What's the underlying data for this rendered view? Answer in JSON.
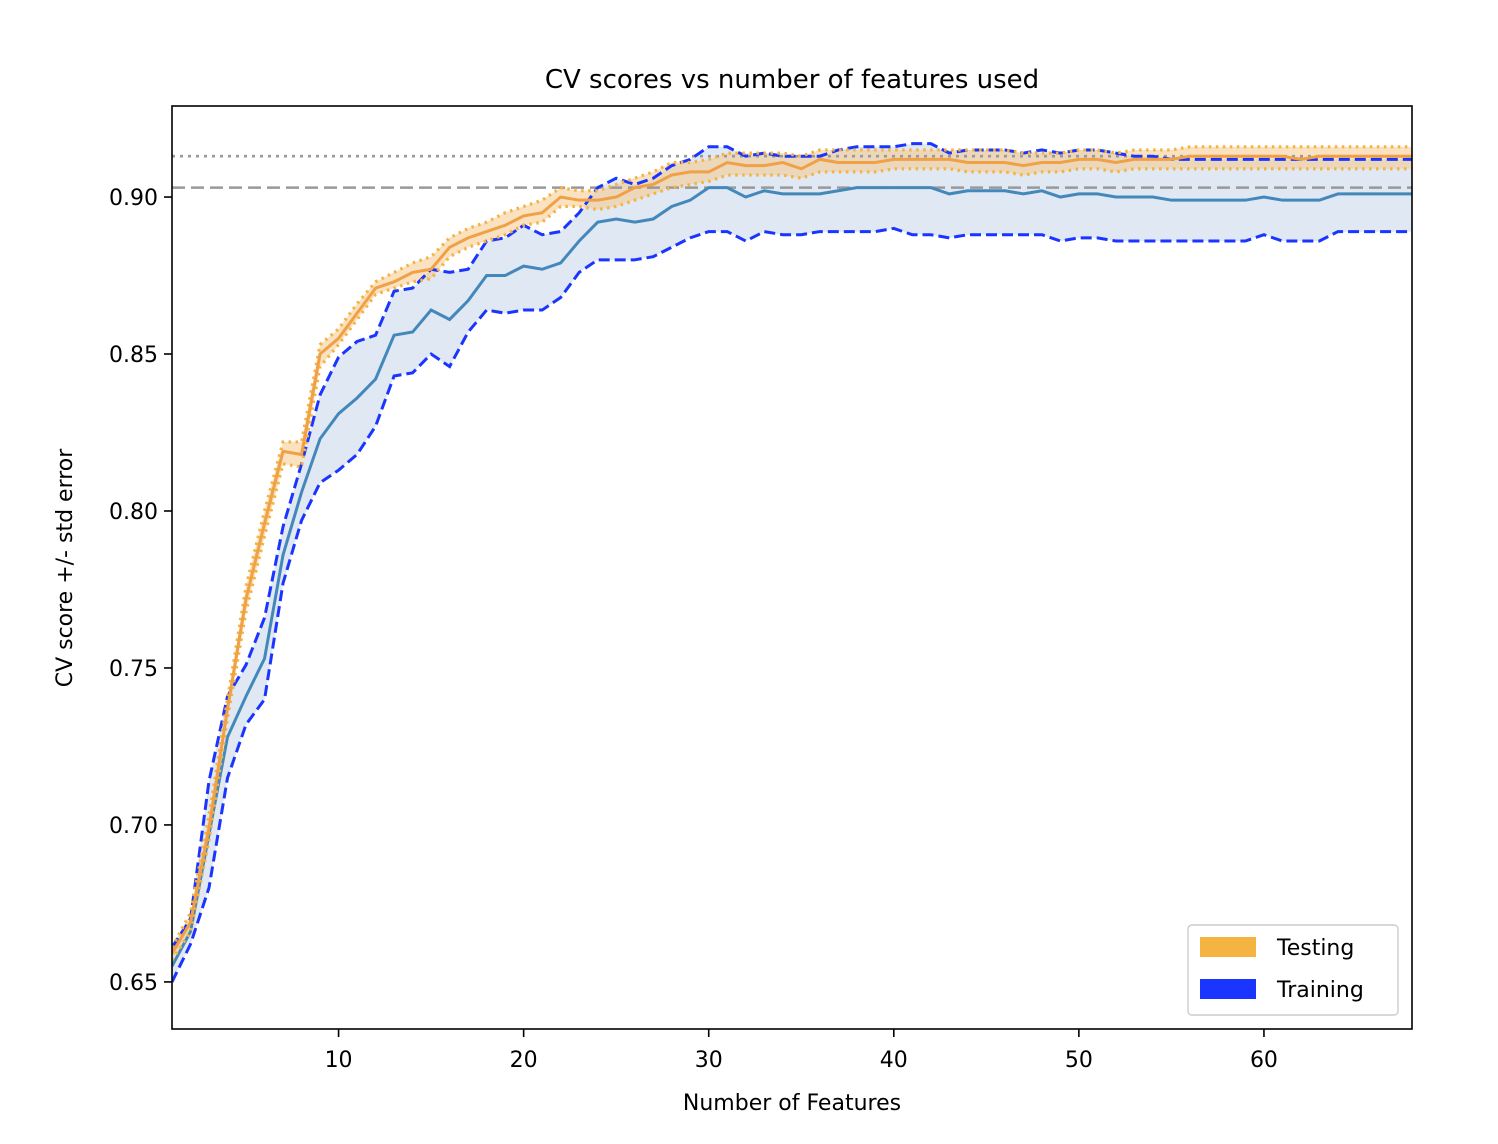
{
  "chart_data": {
    "type": "line",
    "title": "CV scores vs number of features used",
    "xlabel": "Number of Features",
    "ylabel": "CV score +/- std error",
    "xlim": [
      1,
      68
    ],
    "ylim": [
      0.635,
      0.929
    ],
    "xticks": [
      10,
      20,
      30,
      40,
      50,
      60
    ],
    "xtick_labels": [
      "10",
      "20",
      "30",
      "40",
      "50",
      "60"
    ],
    "yticks": [
      0.65,
      0.7,
      0.75,
      0.8,
      0.85,
      0.9
    ],
    "ytick_labels": [
      "0.65",
      "0.70",
      "0.75",
      "0.80",
      "0.85",
      "0.90"
    ],
    "grid": false,
    "legend": {
      "placement": "lower-right",
      "entries": [
        {
          "label": "Testing",
          "color": "#f5b342"
        },
        {
          "label": "Training",
          "color": "#1a35ff"
        }
      ]
    },
    "reference_lines": [
      {
        "style": "dotted",
        "y": 0.913,
        "color": "#999999"
      },
      {
        "style": "dashed",
        "y": 0.903,
        "color": "#999999"
      }
    ],
    "x_start": 1,
    "series": [
      {
        "name": "Testing",
        "color": "#f0a045",
        "band_color": "#f5c98a",
        "values": [
          0.659,
          0.669,
          0.699,
          0.737,
          0.772,
          0.796,
          0.819,
          0.818,
          0.85,
          0.855,
          0.863,
          0.871,
          0.873,
          0.876,
          0.877,
          0.884,
          0.887,
          0.889,
          0.891,
          0.894,
          0.895,
          0.9,
          0.899,
          0.899,
          0.9,
          0.903,
          0.904,
          0.907,
          0.908,
          0.908,
          0.911,
          0.91,
          0.91,
          0.911,
          0.909,
          0.912,
          0.911,
          0.911,
          0.911,
          0.912,
          0.912,
          0.912,
          0.912,
          0.911,
          0.911,
          0.911,
          0.91,
          0.911,
          0.911,
          0.912,
          0.912,
          0.911,
          0.912,
          0.912,
          0.912,
          0.913,
          0.913,
          0.913,
          0.913,
          0.913,
          0.913,
          0.912,
          0.913,
          0.913,
          0.913,
          0.913,
          0.913,
          0.913
        ],
        "lower": [
          0.657,
          0.666,
          0.695,
          0.734,
          0.768,
          0.792,
          0.815,
          0.814,
          0.846,
          0.853,
          0.861,
          0.869,
          0.871,
          0.873,
          0.874,
          0.881,
          0.884,
          0.886,
          0.888,
          0.891,
          0.892,
          0.897,
          0.897,
          0.896,
          0.897,
          0.899,
          0.901,
          0.903,
          0.904,
          0.905,
          0.907,
          0.907,
          0.907,
          0.907,
          0.906,
          0.908,
          0.908,
          0.908,
          0.908,
          0.909,
          0.909,
          0.909,
          0.909,
          0.908,
          0.908,
          0.908,
          0.907,
          0.908,
          0.908,
          0.909,
          0.909,
          0.908,
          0.909,
          0.909,
          0.909,
          0.909,
          0.909,
          0.909,
          0.909,
          0.909,
          0.909,
          0.909,
          0.909,
          0.909,
          0.909,
          0.909,
          0.909,
          0.909
        ],
        "upper": [
          0.661,
          0.672,
          0.703,
          0.74,
          0.776,
          0.8,
          0.822,
          0.822,
          0.853,
          0.858,
          0.866,
          0.873,
          0.876,
          0.879,
          0.881,
          0.887,
          0.89,
          0.892,
          0.895,
          0.897,
          0.899,
          0.903,
          0.902,
          0.902,
          0.904,
          0.906,
          0.908,
          0.911,
          0.911,
          0.912,
          0.914,
          0.914,
          0.914,
          0.914,
          0.913,
          0.915,
          0.915,
          0.915,
          0.915,
          0.915,
          0.915,
          0.915,
          0.915,
          0.915,
          0.915,
          0.915,
          0.914,
          0.914,
          0.914,
          0.915,
          0.915,
          0.914,
          0.915,
          0.915,
          0.915,
          0.916,
          0.916,
          0.916,
          0.916,
          0.916,
          0.916,
          0.916,
          0.916,
          0.916,
          0.916,
          0.916,
          0.916,
          0.916
        ]
      },
      {
        "name": "Training",
        "color": "#4488bb",
        "band_color": "#dde7f2",
        "values": [
          0.655,
          0.666,
          0.697,
          0.728,
          0.741,
          0.753,
          0.786,
          0.806,
          0.823,
          0.831,
          0.836,
          0.842,
          0.856,
          0.857,
          0.864,
          0.861,
          0.867,
          0.875,
          0.875,
          0.878,
          0.877,
          0.879,
          0.886,
          0.892,
          0.893,
          0.892,
          0.893,
          0.897,
          0.899,
          0.903,
          0.903,
          0.9,
          0.902,
          0.901,
          0.901,
          0.901,
          0.902,
          0.903,
          0.903,
          0.903,
          0.903,
          0.903,
          0.901,
          0.902,
          0.902,
          0.902,
          0.901,
          0.902,
          0.9,
          0.901,
          0.901,
          0.9,
          0.9,
          0.9,
          0.899,
          0.899,
          0.899,
          0.899,
          0.899,
          0.9,
          0.899,
          0.899,
          0.899,
          0.901,
          0.901,
          0.901,
          0.901,
          0.901
        ],
        "lower": [
          0.65,
          0.662,
          0.68,
          0.715,
          0.732,
          0.74,
          0.777,
          0.797,
          0.809,
          0.813,
          0.818,
          0.827,
          0.843,
          0.844,
          0.85,
          0.846,
          0.857,
          0.864,
          0.863,
          0.864,
          0.864,
          0.868,
          0.876,
          0.88,
          0.88,
          0.88,
          0.881,
          0.884,
          0.887,
          0.889,
          0.889,
          0.886,
          0.889,
          0.888,
          0.888,
          0.889,
          0.889,
          0.889,
          0.889,
          0.89,
          0.888,
          0.888,
          0.887,
          0.888,
          0.888,
          0.888,
          0.888,
          0.888,
          0.886,
          0.887,
          0.887,
          0.886,
          0.886,
          0.886,
          0.886,
          0.886,
          0.886,
          0.886,
          0.886,
          0.888,
          0.886,
          0.886,
          0.886,
          0.889,
          0.889,
          0.889,
          0.889,
          0.889
        ],
        "upper": [
          0.661,
          0.67,
          0.714,
          0.741,
          0.751,
          0.766,
          0.795,
          0.815,
          0.837,
          0.849,
          0.854,
          0.856,
          0.87,
          0.871,
          0.877,
          0.876,
          0.877,
          0.886,
          0.887,
          0.891,
          0.888,
          0.889,
          0.895,
          0.903,
          0.906,
          0.904,
          0.906,
          0.91,
          0.912,
          0.916,
          0.916,
          0.913,
          0.914,
          0.913,
          0.913,
          0.913,
          0.915,
          0.916,
          0.916,
          0.916,
          0.917,
          0.917,
          0.914,
          0.915,
          0.915,
          0.915,
          0.914,
          0.915,
          0.914,
          0.915,
          0.915,
          0.914,
          0.913,
          0.913,
          0.912,
          0.912,
          0.912,
          0.912,
          0.912,
          0.912,
          0.912,
          0.912,
          0.912,
          0.912,
          0.912,
          0.912,
          0.912,
          0.912
        ]
      }
    ]
  }
}
